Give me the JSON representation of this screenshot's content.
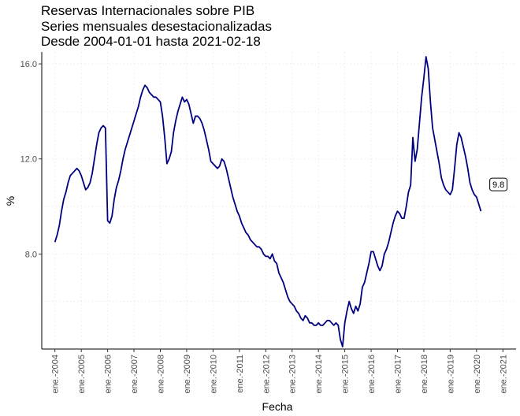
{
  "chart_data": {
    "type": "line",
    "title_lines": [
      "Reservas Internacionales sobre PIB",
      "Series mensuales desestacionalizadas",
      "Desde 2004-01-01 hasta 2021-02-18"
    ],
    "xlabel": "Fecha",
    "ylabel": "%",
    "x_tick_labels": [
      "ene.-2004",
      "ene.-2005",
      "ene.-2006",
      "ene.-2007",
      "ene.-2008",
      "ene.-2009",
      "ene.-2010",
      "ene.-2011",
      "ene.-2012",
      "ene.-2013",
      "ene.-2014",
      "ene.-2015",
      "ene.-2016",
      "ene.-2017",
      "ene.-2018",
      "ene.-2019",
      "ene.-2020",
      "ene.-2021"
    ],
    "x_tick_years": [
      2004,
      2005,
      2006,
      2007,
      2008,
      2009,
      2010,
      2011,
      2012,
      2013,
      2014,
      2015,
      2016,
      2017,
      2018,
      2019,
      2020,
      2021
    ],
    "y_ticks": [
      8,
      12,
      16
    ],
    "y_tick_labels": [
      "8.0",
      "12.0",
      "16.0"
    ],
    "xlim": [
      "2003-07-01",
      "2021-07-01"
    ],
    "ylim": [
      4.0,
      16.5
    ],
    "grid": true,
    "line_color": "#000080",
    "annotation": {
      "label": "9.8",
      "x": "2021-02-18",
      "y": 9.8
    },
    "series": [
      {
        "points": [
          [
            "2004-01",
            8.5
          ],
          [
            "2004-02",
            8.8
          ],
          [
            "2004-03",
            9.2
          ],
          [
            "2004-04",
            9.8
          ],
          [
            "2004-05",
            10.3
          ],
          [
            "2004-06",
            10.6
          ],
          [
            "2004-07",
            11.0
          ],
          [
            "2004-08",
            11.3
          ],
          [
            "2004-09",
            11.4
          ],
          [
            "2004-10",
            11.5
          ],
          [
            "2004-11",
            11.6
          ],
          [
            "2004-12",
            11.5
          ],
          [
            "2005-01",
            11.3
          ],
          [
            "2005-02",
            11.0
          ],
          [
            "2005-03",
            10.7
          ],
          [
            "2005-04",
            10.8
          ],
          [
            "2005-05",
            11.0
          ],
          [
            "2005-06",
            11.4
          ],
          [
            "2005-07",
            12.0
          ],
          [
            "2005-08",
            12.6
          ],
          [
            "2005-09",
            13.1
          ],
          [
            "2005-10",
            13.3
          ],
          [
            "2005-11",
            13.4
          ],
          [
            "2005-12",
            13.3
          ],
          [
            "2006-01",
            9.4
          ],
          [
            "2006-02",
            9.3
          ],
          [
            "2006-03",
            9.6
          ],
          [
            "2006-04",
            10.3
          ],
          [
            "2006-05",
            10.8
          ],
          [
            "2006-06",
            11.1
          ],
          [
            "2006-07",
            11.5
          ],
          [
            "2006-08",
            12.0
          ],
          [
            "2006-09",
            12.4
          ],
          [
            "2006-10",
            12.7
          ],
          [
            "2006-11",
            13.0
          ],
          [
            "2006-12",
            13.3
          ],
          [
            "2007-01",
            13.6
          ],
          [
            "2007-02",
            13.9
          ],
          [
            "2007-03",
            14.2
          ],
          [
            "2007-04",
            14.6
          ],
          [
            "2007-05",
            14.9
          ],
          [
            "2007-06",
            15.1
          ],
          [
            "2007-07",
            15.0
          ],
          [
            "2007-08",
            14.8
          ],
          [
            "2007-09",
            14.7
          ],
          [
            "2007-10",
            14.6
          ],
          [
            "2007-11",
            14.6
          ],
          [
            "2007-12",
            14.5
          ],
          [
            "2008-01",
            14.4
          ],
          [
            "2008-02",
            13.8
          ],
          [
            "2008-03",
            12.9
          ],
          [
            "2008-04",
            11.8
          ],
          [
            "2008-05",
            12.0
          ],
          [
            "2008-06",
            12.3
          ],
          [
            "2008-07",
            13.1
          ],
          [
            "2008-08",
            13.6
          ],
          [
            "2008-09",
            14.0
          ],
          [
            "2008-10",
            14.3
          ],
          [
            "2008-11",
            14.6
          ],
          [
            "2008-12",
            14.4
          ],
          [
            "2009-01",
            14.5
          ],
          [
            "2009-02",
            14.3
          ],
          [
            "2009-03",
            13.9
          ],
          [
            "2009-04",
            13.5
          ],
          [
            "2009-05",
            13.8
          ],
          [
            "2009-06",
            13.8
          ],
          [
            "2009-07",
            13.7
          ],
          [
            "2009-08",
            13.5
          ],
          [
            "2009-09",
            13.2
          ],
          [
            "2009-10",
            12.8
          ],
          [
            "2009-11",
            12.4
          ],
          [
            "2009-12",
            11.9
          ],
          [
            "2010-01",
            11.8
          ],
          [
            "2010-02",
            11.7
          ],
          [
            "2010-03",
            11.6
          ],
          [
            "2010-04",
            11.7
          ],
          [
            "2010-05",
            12.0
          ],
          [
            "2010-06",
            11.9
          ],
          [
            "2010-07",
            11.6
          ],
          [
            "2010-08",
            11.2
          ],
          [
            "2010-09",
            10.8
          ],
          [
            "2010-10",
            10.4
          ],
          [
            "2010-11",
            10.1
          ],
          [
            "2010-12",
            9.8
          ],
          [
            "2011-01",
            9.6
          ],
          [
            "2011-02",
            9.3
          ],
          [
            "2011-03",
            9.1
          ],
          [
            "2011-04",
            8.9
          ],
          [
            "2011-05",
            8.8
          ],
          [
            "2011-06",
            8.6
          ],
          [
            "2011-07",
            8.5
          ],
          [
            "2011-08",
            8.4
          ],
          [
            "2011-09",
            8.3
          ],
          [
            "2011-10",
            8.3
          ],
          [
            "2011-11",
            8.2
          ],
          [
            "2011-12",
            8.0
          ],
          [
            "2012-01",
            7.9
          ],
          [
            "2012-02",
            7.9
          ],
          [
            "2012-03",
            7.8
          ],
          [
            "2012-04",
            8.0
          ],
          [
            "2012-05",
            7.7
          ],
          [
            "2012-06",
            7.6
          ],
          [
            "2012-07",
            7.2
          ],
          [
            "2012-08",
            7.0
          ],
          [
            "2012-09",
            6.8
          ],
          [
            "2012-10",
            6.5
          ],
          [
            "2012-11",
            6.2
          ],
          [
            "2012-12",
            6.0
          ],
          [
            "2013-01",
            5.9
          ],
          [
            "2013-02",
            5.8
          ],
          [
            "2013-03",
            5.6
          ],
          [
            "2013-04",
            5.5
          ],
          [
            "2013-05",
            5.3
          ],
          [
            "2013-06",
            5.2
          ],
          [
            "2013-07",
            5.4
          ],
          [
            "2013-08",
            5.3
          ],
          [
            "2013-09",
            5.1
          ],
          [
            "2013-10",
            5.1
          ],
          [
            "2013-11",
            5.0
          ],
          [
            "2013-12",
            5.0
          ],
          [
            "2014-01",
            5.1
          ],
          [
            "2014-02",
            5.0
          ],
          [
            "2014-03",
            5.0
          ],
          [
            "2014-04",
            5.1
          ],
          [
            "2014-05",
            5.2
          ],
          [
            "2014-06",
            5.2
          ],
          [
            "2014-07",
            5.1
          ],
          [
            "2014-08",
            5.0
          ],
          [
            "2014-09",
            5.1
          ],
          [
            "2014-10",
            5.0
          ],
          [
            "2014-11",
            4.4
          ],
          [
            "2014-12",
            4.1
          ],
          [
            "2015-01",
            5.1
          ],
          [
            "2015-02",
            5.6
          ],
          [
            "2015-03",
            6.0
          ],
          [
            "2015-04",
            5.7
          ],
          [
            "2015-05",
            5.5
          ],
          [
            "2015-06",
            5.8
          ],
          [
            "2015-07",
            5.6
          ],
          [
            "2015-08",
            5.9
          ],
          [
            "2015-09",
            6.6
          ],
          [
            "2015-10",
            6.8
          ],
          [
            "2015-11",
            7.2
          ],
          [
            "2015-12",
            7.6
          ],
          [
            "2016-01",
            8.1
          ],
          [
            "2016-02",
            8.1
          ],
          [
            "2016-03",
            7.8
          ],
          [
            "2016-04",
            7.5
          ],
          [
            "2016-05",
            7.3
          ],
          [
            "2016-06",
            7.5
          ],
          [
            "2016-07",
            8.0
          ],
          [
            "2016-08",
            8.2
          ],
          [
            "2016-09",
            8.5
          ],
          [
            "2016-10",
            8.9
          ],
          [
            "2016-11",
            9.3
          ],
          [
            "2016-12",
            9.6
          ],
          [
            "2017-01",
            9.8
          ],
          [
            "2017-02",
            9.7
          ],
          [
            "2017-03",
            9.5
          ],
          [
            "2017-04",
            9.5
          ],
          [
            "2017-05",
            10.0
          ],
          [
            "2017-06",
            10.6
          ],
          [
            "2017-07",
            10.9
          ],
          [
            "2017-08",
            12.9
          ],
          [
            "2017-09",
            11.9
          ],
          [
            "2017-10",
            12.4
          ],
          [
            "2017-11",
            13.5
          ],
          [
            "2017-12",
            14.6
          ],
          [
            "2018-01",
            15.4
          ],
          [
            "2018-02",
            16.3
          ],
          [
            "2018-03",
            15.8
          ],
          [
            "2018-04",
            14.4
          ],
          [
            "2018-05",
            13.3
          ],
          [
            "2018-06",
            12.8
          ],
          [
            "2018-07",
            12.3
          ],
          [
            "2018-08",
            11.8
          ],
          [
            "2018-09",
            11.2
          ],
          [
            "2018-10",
            10.9
          ],
          [
            "2018-11",
            10.7
          ],
          [
            "2018-12",
            10.6
          ],
          [
            "2019-01",
            10.5
          ],
          [
            "2019-02",
            10.7
          ],
          [
            "2019-03",
            11.6
          ],
          [
            "2019-04",
            12.6
          ],
          [
            "2019-05",
            13.1
          ],
          [
            "2019-06",
            12.9
          ],
          [
            "2019-07",
            12.5
          ],
          [
            "2019-08",
            12.1
          ],
          [
            "2019-09",
            11.6
          ],
          [
            "2019-10",
            11.0
          ],
          [
            "2019-11",
            10.7
          ],
          [
            "2019-12",
            10.5
          ],
          [
            "2020-01",
            10.4
          ],
          [
            "2020-02",
            10.1
          ],
          [
            "2020-03",
            9.8
          ]
        ]
      }
    ]
  }
}
